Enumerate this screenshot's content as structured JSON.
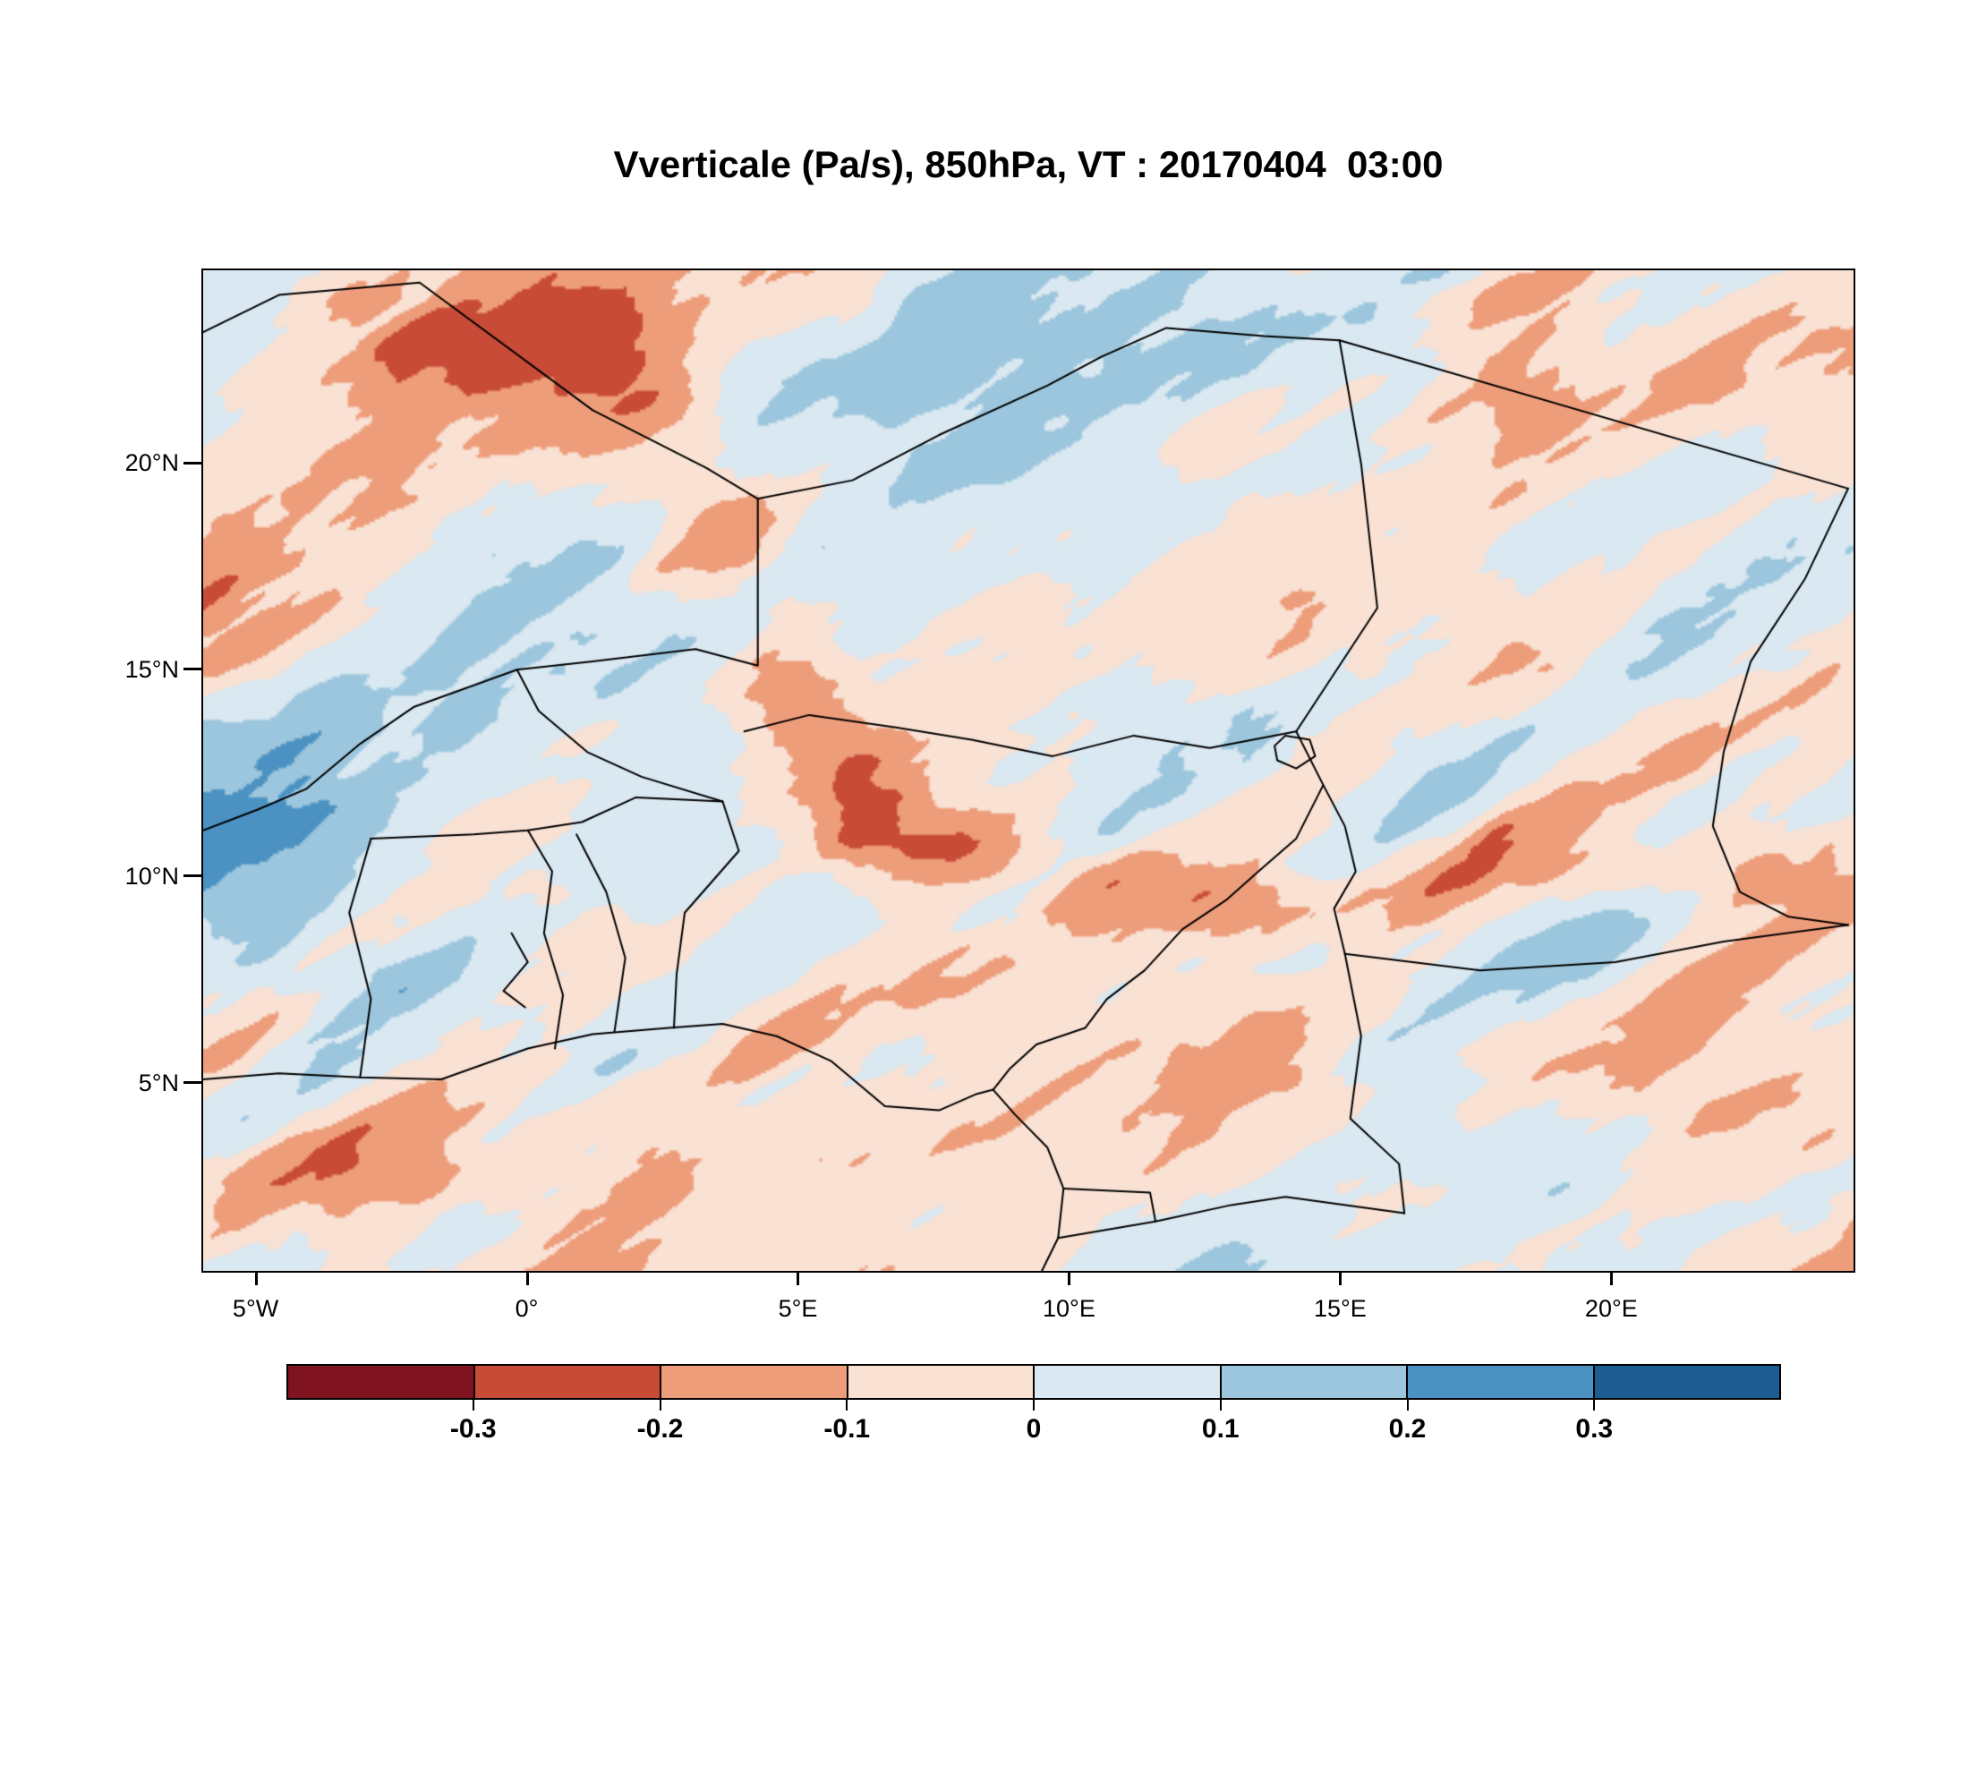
{
  "chart_data": {
    "type": "heatmap",
    "title": "Vverticale (Pa/s), 850hPa, VT : 20170404  03:00",
    "variable": "Vverticale",
    "units": "Pa/s",
    "pressure_level": "850hPa",
    "valid_time": "20170404  03:00",
    "x_axis": {
      "tick_labels": [
        "5°W",
        "0°",
        "5°E",
        "10°E",
        "15°E",
        "20°E"
      ],
      "tick_values_deg": [
        -5,
        0,
        5,
        10,
        15,
        20
      ],
      "range_deg": [
        -6,
        24.5
      ]
    },
    "y_axis": {
      "tick_labels": [
        "5°N",
        "10°N",
        "15°N",
        "20°N"
      ],
      "tick_values_deg": [
        5,
        10,
        15,
        20
      ],
      "range_deg": [
        0.4,
        24.7
      ]
    },
    "colorbar": {
      "orientation": "horizontal",
      "tick_labels": [
        "-0.3",
        "-0.2",
        "-0.1",
        "0",
        "0.1",
        "0.2",
        "0.3"
      ],
      "levels": [
        -0.3,
        -0.2,
        -0.1,
        0,
        0.1,
        0.2,
        0.3
      ],
      "colors": [
        "#7f1420",
        "#c84b37",
        "#ee9d7a",
        "#f9e1d4",
        "#d9e8f1",
        "#9cc6dd",
        "#4b92c3",
        "#1d5c91"
      ],
      "missing_color": "#ffffff"
    },
    "map_overlay": "national boundaries, coastline and lakes drawn as black lines",
    "region": "West and Central Africa"
  }
}
